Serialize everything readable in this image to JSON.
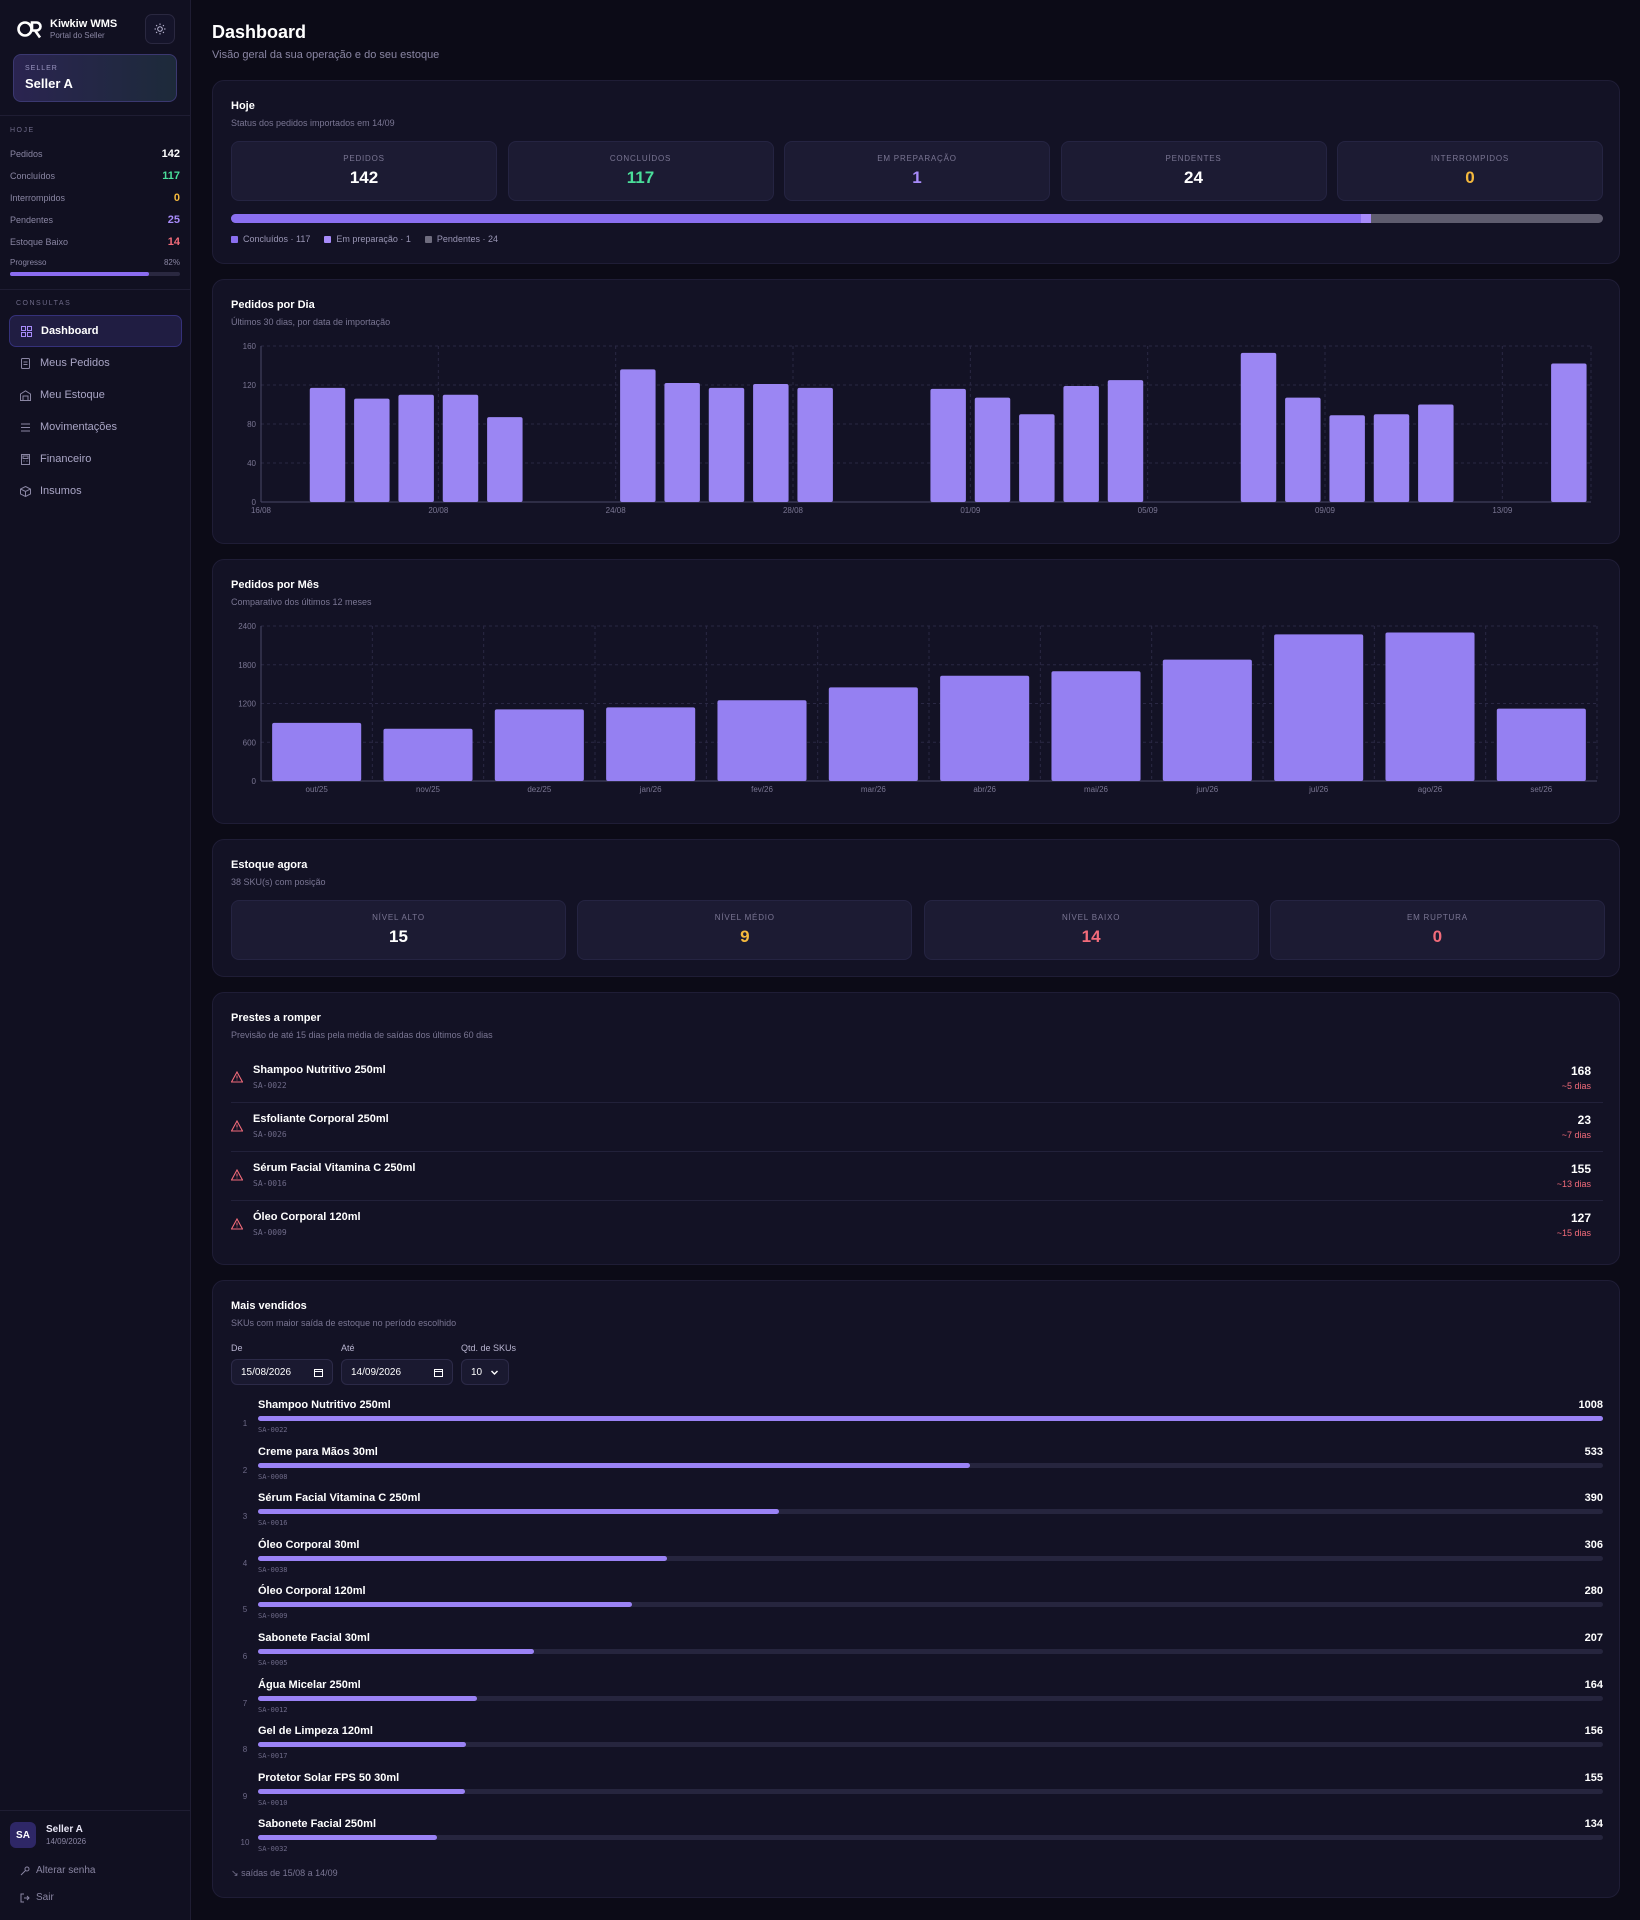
{
  "brand": {
    "name": "Kiwkiw WMS",
    "subtitle": "Portal do Seller"
  },
  "seller": {
    "label": "SELLER",
    "name": "Seller A"
  },
  "today_section": {
    "title": "HOJE",
    "rows": [
      {
        "label": "Pedidos",
        "value": "142",
        "color": "#ffffff"
      },
      {
        "label": "Concluídos",
        "value": "117",
        "color": "#4ade9a"
      },
      {
        "label": "Interrompidos",
        "value": "0",
        "color": "#f5b93d"
      },
      {
        "label": "Pendentes",
        "value": "25",
        "color": "#a78bfa"
      },
      {
        "label": "Estoque Baixo",
        "value": "14",
        "color": "#f26b7a"
      }
    ],
    "progress_label": "Progresso",
    "progress_value": "82%",
    "progress_fraction": 0.82
  },
  "nav": {
    "section": "CONSULTAS",
    "items": [
      {
        "label": "Dashboard",
        "icon": "dashboard-icon",
        "active": true
      },
      {
        "label": "Meus Pedidos",
        "icon": "orders-icon"
      },
      {
        "label": "Meu Estoque",
        "icon": "warehouse-icon"
      },
      {
        "label": "Movimentações",
        "icon": "list-icon"
      },
      {
        "label": "Financeiro",
        "icon": "finance-icon"
      },
      {
        "label": "Insumos",
        "icon": "package-icon"
      }
    ]
  },
  "user": {
    "initials": "SA",
    "name": "Seller A",
    "date": "14/09/2026",
    "change_password": "Alterar senha",
    "logout": "Sair"
  },
  "page": {
    "title": "Dashboard",
    "subtitle": "Visão geral da sua operação e do seu estoque"
  },
  "today_card": {
    "title": "Hoje",
    "subtitle": "Status dos pedidos importados em 14/09",
    "stats": [
      {
        "label": "PEDIDOS",
        "value": "142",
        "color": "#ffffff"
      },
      {
        "label": "CONCLUÍDOS",
        "value": "117",
        "color": "#4ade9a"
      },
      {
        "label": "EM PREPARAÇÃO",
        "value": "1",
        "color": "#a78bfa"
      },
      {
        "label": "PENDENTES",
        "value": "24",
        "color": "#ffffff"
      },
      {
        "label": "INTERROMPIDOS",
        "value": "0",
        "color": "#f5b93d"
      }
    ],
    "progress": {
      "concluidos": 117,
      "em_preparacao": 1,
      "pendentes": 24,
      "total": 142
    },
    "legend": [
      {
        "label": "Concluídos · 117",
        "color": "#8a6ff0"
      },
      {
        "label": "Em preparação · 1",
        "color": "#a78bfa"
      },
      {
        "label": "Pendentes · 24",
        "color": "#6e6c7e"
      }
    ]
  },
  "daily_card": {
    "title": "Pedidos por Dia",
    "subtitle": "Últimos 30 dias, por data de importação"
  },
  "monthly_card": {
    "title": "Pedidos por Mês",
    "subtitle": "Comparativo dos últimos 12 meses"
  },
  "chart_data": [
    {
      "type": "bar",
      "title": "Pedidos por Dia",
      "categories": [
        "16/08",
        "17/08",
        "18/08",
        "19/08",
        "20/08",
        "21/08",
        "22/08",
        "23/08",
        "24/08",
        "25/08",
        "26/08",
        "27/08",
        "28/08",
        "29/08",
        "30/08",
        "31/08",
        "01/09",
        "02/09",
        "03/09",
        "04/09",
        "05/09",
        "06/09",
        "07/09",
        "08/09",
        "09/09",
        "10/09",
        "11/09",
        "12/09",
        "13/09",
        "14/09"
      ],
      "values": [
        0,
        117,
        106,
        110,
        110,
        87,
        0,
        0,
        136,
        122,
        117,
        121,
        117,
        0,
        0,
        116,
        107,
        90,
        119,
        125,
        0,
        0,
        153,
        107,
        89,
        90,
        100,
        0,
        0,
        142
      ],
      "tick_labels": [
        "16/08",
        "20/08",
        "24/08",
        "28/08",
        "01/09",
        "05/09",
        "09/09",
        "13/09"
      ],
      "ylim": [
        0,
        160
      ],
      "yticks": [
        0,
        40,
        80,
        120,
        160
      ],
      "grid": true,
      "color": "#9b86f3"
    },
    {
      "type": "bar",
      "title": "Pedidos por Mês",
      "categories": [
        "out/25",
        "nov/25",
        "dez/25",
        "jan/26",
        "fev/26",
        "mar/26",
        "abr/26",
        "mai/26",
        "jun/26",
        "jul/26",
        "ago/26",
        "set/26"
      ],
      "values": [
        900,
        810,
        1110,
        1140,
        1250,
        1450,
        1630,
        1700,
        1880,
        2270,
        2300,
        1120
      ],
      "ylim": [
        0,
        2400
      ],
      "yticks": [
        0,
        600,
        1200,
        1800,
        2400
      ],
      "grid": true,
      "color": "#9580f2"
    }
  ],
  "stock_card": {
    "title": "Estoque agora",
    "subtitle": "38 SKU(s) com posição",
    "stats": [
      {
        "label": "NÍVEL ALTO",
        "value": "15",
        "color": "#ffffff"
      },
      {
        "label": "NÍVEL MÉDIO",
        "value": "9",
        "color": "#f5b93d"
      },
      {
        "label": "NÍVEL BAIXO",
        "value": "14",
        "color": "#f26b7a"
      },
      {
        "label": "EM RUPTURA",
        "value": "0",
        "color": "#f26b7a"
      }
    ]
  },
  "risk_card": {
    "title": "Prestes a romper",
    "subtitle": "Previsão de até 15 dias pela média de saídas dos últimos 60 dias",
    "items": [
      {
        "name": "Shampoo Nutritivo 250ml",
        "sku": "SA-0022",
        "qty": "168",
        "days": "~5 dias"
      },
      {
        "name": "Esfoliante Corporal 250ml",
        "sku": "SA-0026",
        "qty": "23",
        "days": "~7 dias"
      },
      {
        "name": "Sérum Facial Vitamina C 250ml",
        "sku": "SA-0016",
        "qty": "155",
        "days": "~13 dias"
      },
      {
        "name": "Óleo Corporal 120ml",
        "sku": "SA-0009",
        "qty": "127",
        "days": "~15 dias"
      }
    ]
  },
  "top_card": {
    "title": "Mais vendidos",
    "subtitle": "SKUs com maior saída de estoque no período escolhido",
    "filters": {
      "from_label": "De",
      "from_value": "15/08/2026",
      "to_label": "Até",
      "to_value": "14/09/2026",
      "qty_label": "Qtd. de SKUs",
      "qty_value": "10"
    },
    "items": [
      {
        "rank": "1",
        "name": "Shampoo Nutritivo 250ml",
        "sku": "SA-0022",
        "value": "1008",
        "fraction": 1.0
      },
      {
        "rank": "2",
        "name": "Creme para Mãos 30ml",
        "sku": "SA-0008",
        "value": "533",
        "fraction": 0.529
      },
      {
        "rank": "3",
        "name": "Sérum Facial Vitamina C 250ml",
        "sku": "SA-0016",
        "value": "390",
        "fraction": 0.387
      },
      {
        "rank": "4",
        "name": "Óleo Corporal 30ml",
        "sku": "SA-0038",
        "value": "306",
        "fraction": 0.304
      },
      {
        "rank": "5",
        "name": "Óleo Corporal 120ml",
        "sku": "SA-0009",
        "value": "280",
        "fraction": 0.278
      },
      {
        "rank": "6",
        "name": "Sabonete Facial 30ml",
        "sku": "SA-0005",
        "value": "207",
        "fraction": 0.205
      },
      {
        "rank": "7",
        "name": "Água Micelar 250ml",
        "sku": "SA-0012",
        "value": "164",
        "fraction": 0.163
      },
      {
        "rank": "8",
        "name": "Gel de Limpeza 120ml",
        "sku": "SA-0017",
        "value": "156",
        "fraction": 0.155
      },
      {
        "rank": "9",
        "name": "Protetor Solar FPS 50 30ml",
        "sku": "SA-0010",
        "value": "155",
        "fraction": 0.154
      },
      {
        "rank": "10",
        "name": "Sabonete Facial 250ml",
        "sku": "SA-0032",
        "value": "134",
        "fraction": 0.133
      }
    ],
    "footer": "saídas de 15/08 a 14/09"
  }
}
